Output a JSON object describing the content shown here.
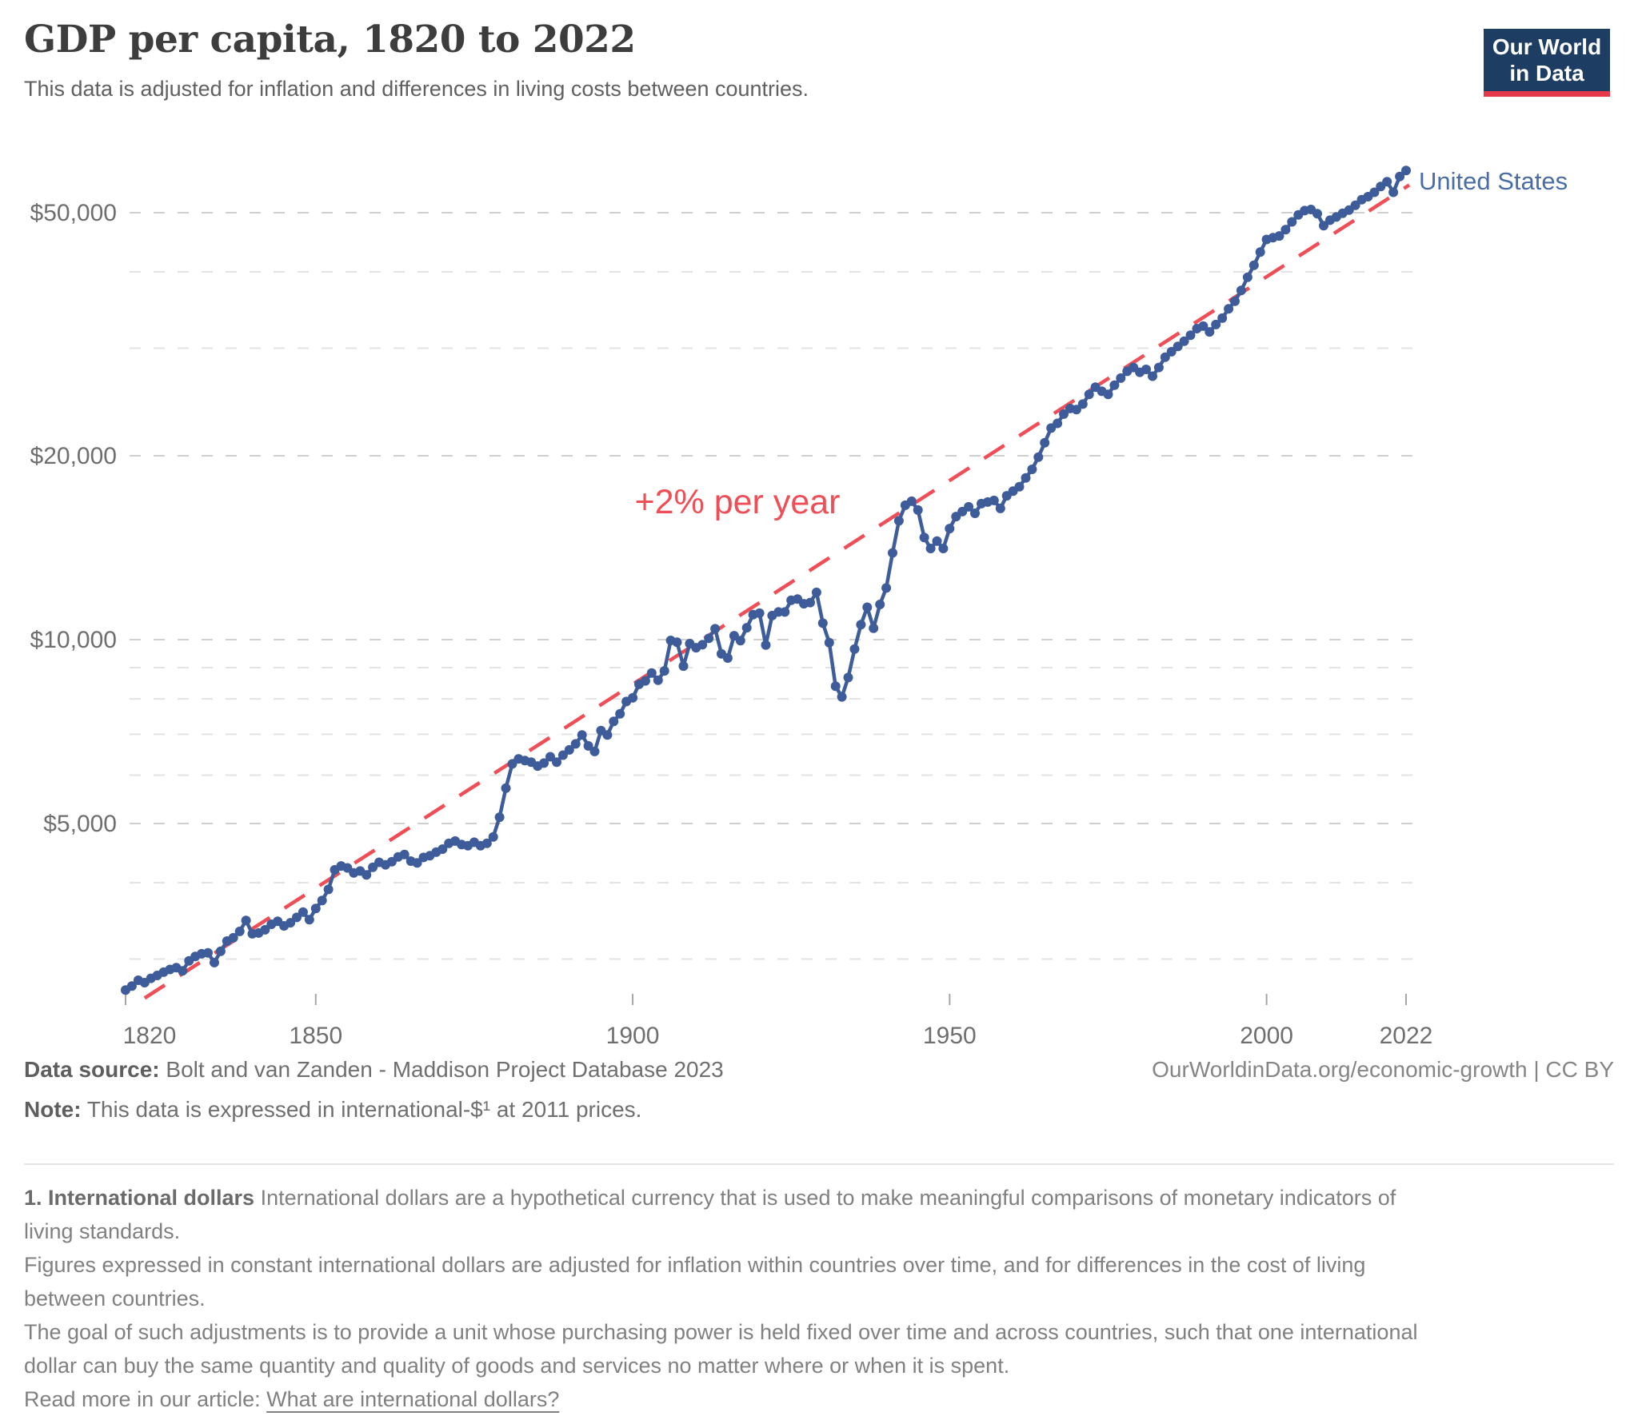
{
  "header": {
    "title": "GDP per capita, 1820 to 2022",
    "subtitle": "This data is adjusted for inflation and differences in living costs between countries."
  },
  "logo": {
    "line1": "Our World",
    "line2": "in Data",
    "bg": "#1d3d63",
    "accent": "#e5384b"
  },
  "chart_data": {
    "type": "line",
    "title": "GDP per capita, 1820 to 2022",
    "series_label": "United States",
    "trend_label": "+2% per year",
    "y_scale": "log",
    "ylim": [
      2500,
      62000
    ],
    "grid": true,
    "legend_position": "end-of-line",
    "y_ticks_labeled": [
      5000,
      10000,
      20000,
      50000
    ],
    "y_gridlines": [
      3000,
      4000,
      5000,
      6000,
      7000,
      8000,
      9000,
      10000,
      20000,
      30000,
      40000,
      50000
    ],
    "x_ticks": [
      1820,
      1850,
      1900,
      1950,
      2000,
      2022
    ],
    "start_year": 1820,
    "values": [
      2670,
      2710,
      2770,
      2745,
      2790,
      2820,
      2855,
      2885,
      2905,
      2870,
      2980,
      3030,
      3060,
      3070,
      2960,
      3090,
      3210,
      3250,
      3330,
      3470,
      3300,
      3310,
      3350,
      3420,
      3460,
      3400,
      3440,
      3510,
      3580,
      3480,
      3630,
      3740,
      3900,
      4200,
      4260,
      4230,
      4150,
      4180,
      4120,
      4240,
      4320,
      4280,
      4330,
      4410,
      4450,
      4340,
      4310,
      4400,
      4430,
      4490,
      4540,
      4640,
      4680,
      4620,
      4600,
      4660,
      4600,
      4640,
      4755,
      5120,
      5715,
      6260,
      6380,
      6340,
      6300,
      6210,
      6280,
      6430,
      6300,
      6470,
      6600,
      6750,
      6980,
      6700,
      6560,
      7100,
      6980,
      7350,
      7560,
      7920,
      8030,
      8450,
      8560,
      8820,
      8580,
      8890,
      9970,
      9900,
      9050,
      9850,
      9700,
      9810,
      10050,
      10420,
      9480,
      9330,
      10150,
      9960,
      10460,
      10990,
      11050,
      9800,
      10950,
      11100,
      11100,
      11600,
      11650,
      11450,
      11500,
      11950,
      10640,
      9890,
      8390,
      8060,
      8670,
      9650,
      10580,
      11300,
      10440,
      11420,
      12150,
      13870,
      15650,
      16600,
      16850,
      16300,
      14700,
      14100,
      14500,
      14100,
      15200,
      15900,
      16200,
      16500,
      16100,
      16700,
      16800,
      16900,
      16400,
      17200,
      17500,
      17800,
      18400,
      19000,
      19900,
      21000,
      22200,
      22600,
      23400,
      23900,
      23800,
      24300,
      25200,
      25900,
      25500,
      25200,
      26100,
      26800,
      27500,
      27900,
      27400,
      27700,
      27000,
      27900,
      29000,
      29600,
      30200,
      30800,
      31500,
      32300,
      32600,
      31900,
      32800,
      33600,
      34800,
      35800,
      37300,
      39200,
      41000,
      43100,
      45200,
      45500,
      45800,
      46900,
      48300,
      49600,
      50400,
      50600,
      49800,
      47600,
      48600,
      49200,
      49900,
      50500,
      51400,
      52500,
      53100,
      54000,
      55200,
      56200,
      54000,
      57300,
      58600
    ],
    "trend": {
      "start_year": 1823,
      "start_value": 2590,
      "end_year": 2022.5,
      "end_value": 55500
    },
    "colors": {
      "line": "#3d5c99",
      "trend": "#ef4e57",
      "label": "#4a6da5",
      "grid_major": "#cfcfcf",
      "grid_minor": "#e3e3e3",
      "tick": "#a5a5a5"
    }
  },
  "footer": {
    "source_label": "Data source:",
    "source_text": " Bolt and van Zanden - Maddison Project Database 2023",
    "note_label": "Note:",
    "note_text": " This data is expressed in international-$¹ at 2011 prices.",
    "credit": "OurWorldinData.org/economic-growth | CC BY"
  },
  "footnote": {
    "line1_lead": "1. International dollars",
    "line1_rest": " International dollars are a hypothetical currency that is used to make meaningful comparisons of monetary indicators of",
    "line2": "living standards.",
    "line3": "Figures expressed in constant international dollars are adjusted for inflation within countries over time, and for differences in the cost of living",
    "line4": "between countries.",
    "line5": "The goal of such adjustments is to provide a unit whose purchasing power is held fixed over time and across countries, such that one international",
    "line6": "dollar can buy the same quantity and quality of goods and services no matter where or when it is spent.",
    "read_more_label": "Read more in our article: ",
    "read_more_link": "What are international dollars?"
  }
}
